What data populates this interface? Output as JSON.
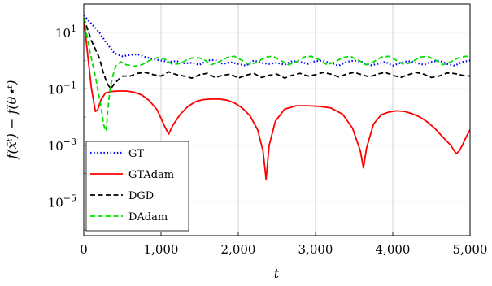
{
  "chart_data": {
    "type": "line",
    "xlabel": "t",
    "ylabel": "f(x̄ᵗ) − f(θ⋆ᵗ)",
    "xlim": [
      0,
      5000
    ],
    "ylim_log10": [
      -6.2,
      2.0
    ],
    "y_scale": "log",
    "grid": true,
    "legend_position": "bottom-left",
    "x_ticks": [
      0,
      1000,
      2000,
      3000,
      4000,
      5000
    ],
    "x_tick_labels": [
      "0",
      "1,000",
      "2,000",
      "3,000",
      "4,000",
      "5,000"
    ],
    "y_ticks_exp": [
      1,
      -1,
      -3,
      -5
    ],
    "y_tick_base": "10",
    "y_tick_exponents": [
      "1",
      "−1",
      "−3",
      "−5"
    ],
    "series": [
      {
        "name": "GT",
        "color": "#0000ff",
        "style": "dotted",
        "x": [
          0,
          100,
          200,
          300,
          400,
          500,
          600,
          700,
          800,
          900,
          1000,
          1100,
          1200,
          1300,
          1400,
          1500,
          1600,
          1700,
          1800,
          1900,
          2000,
          2100,
          2200,
          2300,
          2400,
          2500,
          2600,
          2700,
          2800,
          2900,
          3000,
          3100,
          3200,
          3300,
          3400,
          3500,
          3600,
          3700,
          3800,
          3900,
          4000,
          4100,
          4200,
          4300,
          4400,
          4500,
          4600,
          4700,
          4800,
          4900,
          5000
        ],
        "y_log10": [
          1.6,
          1.3,
          1.0,
          0.6,
          0.25,
          0.15,
          0.2,
          0.22,
          0.12,
          0.05,
          0.0,
          -0.05,
          -0.02,
          -0.1,
          -0.08,
          -0.15,
          0.0,
          0.02,
          -0.12,
          -0.06,
          -0.12,
          -0.18,
          0.0,
          -0.08,
          -0.12,
          -0.08,
          -0.15,
          -0.02,
          -0.05,
          -0.12,
          -0.02,
          0.0,
          -0.1,
          -0.18,
          -0.05,
          0.0,
          -0.05,
          -0.18,
          -0.12,
          -0.05,
          -0.18,
          -0.08,
          -0.02,
          -0.08,
          -0.15,
          -0.05,
          0.0,
          -0.12,
          -0.18,
          -0.05,
          0.0
        ]
      },
      {
        "name": "GTAdam",
        "color": "#ff0000",
        "style": "solid",
        "x": [
          0,
          50,
          100,
          150,
          180,
          220,
          280,
          350,
          450,
          550,
          650,
          750,
          850,
          950,
          1050,
          1100,
          1150,
          1250,
          1350,
          1450,
          1550,
          1650,
          1750,
          1850,
          1950,
          2050,
          2150,
          2250,
          2320,
          2360,
          2400,
          2480,
          2600,
          2750,
          2900,
          3050,
          3200,
          3350,
          3480,
          3580,
          3620,
          3660,
          3750,
          3850,
          3950,
          4050,
          4150,
          4250,
          4350,
          4450,
          4550,
          4650,
          4750,
          4820,
          4860,
          4900,
          4950,
          5000
        ],
        "y_log10": [
          1.5,
          0.2,
          -1.0,
          -1.8,
          -1.75,
          -1.4,
          -1.15,
          -1.1,
          -1.08,
          -1.08,
          -1.12,
          -1.22,
          -1.42,
          -1.75,
          -2.35,
          -2.6,
          -2.3,
          -1.9,
          -1.62,
          -1.45,
          -1.38,
          -1.36,
          -1.36,
          -1.4,
          -1.5,
          -1.68,
          -1.95,
          -2.45,
          -3.2,
          -4.2,
          -3.0,
          -2.15,
          -1.72,
          -1.6,
          -1.6,
          -1.62,
          -1.68,
          -1.9,
          -2.4,
          -3.2,
          -3.8,
          -3.1,
          -2.25,
          -1.92,
          -1.82,
          -1.78,
          -1.8,
          -1.88,
          -2.0,
          -2.18,
          -2.42,
          -2.72,
          -3.0,
          -3.3,
          -3.2,
          -3.0,
          -2.7,
          -2.45
        ]
      },
      {
        "name": "DGD",
        "color": "#000000",
        "style": "dashed",
        "x": [
          0,
          100,
          200,
          250,
          300,
          350,
          400,
          500,
          600,
          700,
          800,
          900,
          1000,
          1100,
          1200,
          1300,
          1400,
          1500,
          1600,
          1700,
          1800,
          1900,
          2000,
          2100,
          2200,
          2300,
          2400,
          2500,
          2600,
          2700,
          2800,
          2900,
          3000,
          3100,
          3200,
          3300,
          3400,
          3500,
          3600,
          3700,
          3800,
          3900,
          4000,
          4100,
          4200,
          4300,
          4400,
          4500,
          4600,
          4700,
          4800,
          4900,
          5000
        ],
        "y_log10": [
          1.5,
          0.7,
          0.1,
          -0.4,
          -0.8,
          -1.0,
          -0.8,
          -0.55,
          -0.55,
          -0.45,
          -0.42,
          -0.5,
          -0.55,
          -0.4,
          -0.5,
          -0.55,
          -0.62,
          -0.5,
          -0.45,
          -0.6,
          -0.52,
          -0.48,
          -0.62,
          -0.52,
          -0.45,
          -0.6,
          -0.52,
          -0.48,
          -0.62,
          -0.52,
          -0.45,
          -0.55,
          -0.5,
          -0.42,
          -0.48,
          -0.58,
          -0.48,
          -0.42,
          -0.5,
          -0.58,
          -0.48,
          -0.42,
          -0.52,
          -0.6,
          -0.5,
          -0.42,
          -0.48,
          -0.6,
          -0.55,
          -0.44,
          -0.46,
          -0.52,
          -0.55
        ]
      },
      {
        "name": "DAdam",
        "color": "#00e000",
        "style": "dashed",
        "x": [
          0,
          80,
          160,
          220,
          260,
          290,
          310,
          340,
          380,
          420,
          480,
          550,
          650,
          750,
          850,
          950,
          1050,
          1150,
          1250,
          1350,
          1450,
          1550,
          1650,
          1750,
          1850,
          1950,
          2050,
          2150,
          2250,
          2350,
          2450,
          2550,
          2650,
          2750,
          2850,
          2950,
          3050,
          3150,
          3250,
          3350,
          3450,
          3550,
          3650,
          3750,
          3850,
          3950,
          4050,
          4150,
          4250,
          4350,
          4450,
          4550,
          4650,
          4750,
          4850,
          4950,
          5000
        ],
        "y_log10": [
          1.5,
          0.3,
          -0.7,
          -1.6,
          -2.3,
          -2.5,
          -1.8,
          -1.0,
          -0.5,
          -0.15,
          -0.05,
          -0.15,
          -0.2,
          -0.15,
          0.0,
          0.1,
          0.05,
          -0.15,
          -0.1,
          0.05,
          0.12,
          0.05,
          -0.15,
          -0.05,
          0.1,
          0.15,
          0.0,
          -0.15,
          -0.05,
          0.12,
          0.15,
          0.0,
          -0.15,
          -0.05,
          0.12,
          0.15,
          0.02,
          -0.15,
          -0.05,
          0.1,
          0.15,
          0.02,
          -0.15,
          -0.05,
          0.12,
          0.15,
          0.0,
          -0.15,
          -0.05,
          0.12,
          0.15,
          0.02,
          -0.15,
          -0.05,
          0.1,
          0.15,
          0.12
        ]
      }
    ]
  }
}
